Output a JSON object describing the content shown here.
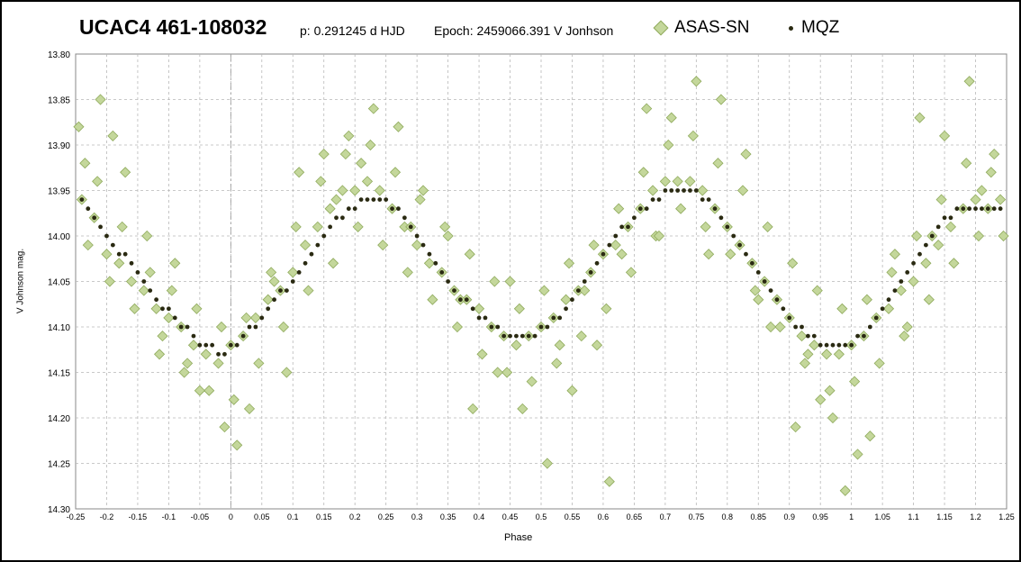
{
  "header": {
    "title": "UCAC4 461-108032",
    "period": "p: 0.291245  d  HJD",
    "epoch": "Epoch: 2459066.391  V Jonhson"
  },
  "chart_data": {
    "type": "scatter",
    "xlabel": "Phase",
    "ylabel": "V Johnson mag.",
    "xlim": [
      -0.25,
      1.25
    ],
    "ylim": [
      14.3,
      13.8
    ],
    "y_inverted": true,
    "grid": true,
    "legend_position": "top",
    "x_ticks": [
      "-0.25",
      "-0.2",
      "-0.15",
      "-0.1",
      "-0.05",
      "0",
      "0.05",
      "0.1",
      "0.15",
      "0.2",
      "0.25",
      "0.3",
      "0.35",
      "0.4",
      "0.45",
      "0.5",
      "0.55",
      "0.6",
      "0.65",
      "0.7",
      "0.75",
      "0.8",
      "0.85",
      "0.9",
      "0.95",
      "1",
      "1.05",
      "1.1",
      "1.15",
      "1.2",
      "1.25"
    ],
    "y_ticks": [
      "13.80",
      "13.85",
      "13.90",
      "13.95",
      "14.00",
      "14.05",
      "14.10",
      "14.15",
      "14.20",
      "14.25",
      "14.30"
    ],
    "series": [
      {
        "name": "ASAS-SN",
        "color": "#c4d79b",
        "edge_color": "#8faa5c",
        "marker": "diamond",
        "x": [
          -0.24,
          -0.22,
          -0.2,
          -0.18,
          -0.16,
          -0.14,
          -0.12,
          -0.1,
          -0.08,
          -0.06,
          -0.04,
          -0.02,
          0.0,
          0.02,
          0.04,
          0.06,
          0.08,
          0.1,
          0.12,
          0.14,
          0.16,
          0.18,
          0.2,
          0.22,
          0.24,
          0.26,
          0.28,
          0.3,
          0.32,
          0.34,
          0.36,
          0.38,
          0.4,
          0.42,
          0.44,
          0.46,
          0.48,
          0.5,
          0.52,
          0.54,
          0.56,
          0.58,
          0.6,
          0.62,
          0.64,
          0.66,
          0.68,
          0.7,
          0.72,
          0.74,
          0.76,
          0.78,
          0.8,
          0.82,
          0.84,
          0.86,
          0.88,
          0.9,
          0.92,
          0.94,
          0.96,
          0.98,
          1.0,
          1.02,
          1.04,
          1.06,
          1.08,
          1.1,
          1.12,
          1.14,
          1.16,
          1.18,
          1.2,
          1.22,
          1.24,
          -0.235,
          -0.215,
          -0.195,
          -0.175,
          -0.155,
          -0.135,
          -0.115,
          -0.095,
          -0.075,
          -0.055,
          -0.035,
          -0.015,
          0.005,
          0.025,
          0.045,
          0.065,
          0.085,
          0.105,
          0.125,
          0.145,
          0.165,
          0.185,
          0.205,
          0.225,
          0.245,
          0.265,
          0.285,
          0.305,
          0.325,
          0.345,
          0.365,
          0.385,
          0.405,
          0.425,
          0.445,
          0.465,
          0.485,
          0.505,
          0.525,
          0.545,
          0.565,
          0.585,
          0.605,
          0.625,
          0.645,
          0.665,
          0.685,
          0.705,
          0.725,
          0.745,
          0.765,
          0.785,
          0.805,
          0.825,
          0.845,
          0.865,
          0.885,
          0.905,
          0.925,
          0.945,
          0.965,
          0.985,
          1.005,
          1.025,
          1.045,
          1.065,
          1.085,
          1.105,
          1.125,
          1.145,
          1.165,
          1.185,
          1.205,
          1.225,
          1.245,
          -0.245,
          -0.21,
          -0.17,
          -0.13,
          -0.09,
          -0.05,
          -0.01,
          0.03,
          0.07,
          0.11,
          0.15,
          0.19,
          0.23,
          0.27,
          0.31,
          0.35,
          0.39,
          0.43,
          0.47,
          0.51,
          0.55,
          0.59,
          0.63,
          0.67,
          0.71,
          0.75,
          0.79,
          0.83,
          0.87,
          0.91,
          0.95,
          0.99,
          1.03,
          1.07,
          1.11,
          1.15,
          1.19,
          1.23,
          -0.23,
          -0.19,
          -0.11,
          -0.07,
          0.01,
          0.09,
          0.17,
          0.21,
          0.29,
          0.37,
          0.45,
          0.53,
          0.57,
          0.61,
          0.69,
          0.77,
          0.85,
          0.93,
          0.97,
          1.01,
          1.09,
          1.13,
          1.21
        ],
        "y": [
          13.96,
          13.98,
          14.02,
          14.03,
          14.05,
          14.06,
          14.08,
          14.09,
          14.1,
          14.12,
          14.13,
          14.14,
          14.12,
          14.11,
          14.09,
          14.07,
          14.06,
          14.04,
          14.01,
          13.99,
          13.97,
          13.95,
          13.95,
          13.94,
          13.95,
          13.97,
          13.99,
          14.01,
          14.03,
          14.04,
          14.06,
          14.07,
          14.08,
          14.1,
          14.11,
          14.12,
          14.11,
          14.1,
          14.09,
          14.07,
          14.06,
          14.04,
          14.02,
          14.01,
          13.99,
          13.97,
          13.95,
          13.94,
          13.94,
          13.94,
          13.95,
          13.97,
          13.99,
          14.01,
          14.03,
          14.05,
          14.07,
          14.09,
          14.11,
          14.12,
          14.13,
          14.13,
          14.12,
          14.11,
          14.09,
          14.08,
          14.06,
          14.05,
          14.03,
          14.01,
          13.99,
          13.97,
          13.96,
          13.97,
          13.96,
          13.92,
          13.94,
          14.05,
          13.99,
          14.08,
          14.0,
          14.13,
          14.06,
          14.15,
          14.08,
          14.17,
          14.1,
          14.18,
          14.09,
          14.14,
          14.04,
          14.1,
          13.99,
          14.06,
          13.94,
          14.03,
          13.91,
          13.99,
          13.9,
          14.01,
          13.93,
          14.04,
          13.96,
          14.07,
          13.99,
          14.1,
          14.02,
          14.13,
          14.05,
          14.15,
          14.08,
          14.16,
          14.06,
          14.14,
          14.03,
          14.11,
          14.01,
          14.08,
          13.97,
          14.04,
          13.93,
          14.0,
          13.9,
          13.97,
          13.89,
          13.99,
          13.92,
          14.02,
          13.95,
          14.06,
          13.99,
          14.1,
          14.03,
          14.14,
          14.06,
          14.17,
          14.08,
          14.16,
          14.07,
          14.14,
          14.04,
          14.11,
          14.0,
          14.07,
          13.96,
          14.03,
          13.92,
          14.0,
          13.93,
          14.0,
          13.88,
          13.85,
          13.93,
          14.04,
          14.03,
          14.17,
          14.21,
          14.19,
          14.05,
          13.93,
          13.91,
          13.89,
          13.86,
          13.88,
          13.95,
          14.0,
          14.19,
          14.15,
          14.19,
          14.25,
          14.17,
          14.12,
          14.02,
          13.86,
          13.87,
          13.83,
          13.85,
          13.91,
          14.1,
          14.21,
          14.18,
          14.28,
          14.22,
          14.02,
          13.87,
          13.89,
          13.83,
          13.91,
          14.01,
          13.89,
          14.11,
          14.14,
          14.23,
          14.15,
          13.96,
          13.92,
          13.99,
          14.07,
          14.05,
          14.12,
          14.06,
          14.27,
          14.0,
          14.02,
          14.07,
          14.13,
          14.2,
          14.24,
          14.1,
          14.0,
          13.95
        ]
      },
      {
        "name": "MQZ",
        "color": "#2a2a12",
        "marker": "dot",
        "x": [
          -0.24,
          -0.23,
          -0.22,
          -0.21,
          -0.2,
          -0.19,
          -0.18,
          -0.17,
          -0.16,
          -0.15,
          -0.14,
          -0.13,
          -0.12,
          -0.11,
          -0.1,
          -0.09,
          -0.08,
          -0.07,
          -0.06,
          -0.05,
          -0.04,
          -0.03,
          -0.02,
          -0.01,
          0.0,
          0.01,
          0.02,
          0.03,
          0.04,
          0.05,
          0.06,
          0.07,
          0.08,
          0.09,
          0.1,
          0.11,
          0.12,
          0.13,
          0.14,
          0.15,
          0.16,
          0.17,
          0.18,
          0.19,
          0.2,
          0.21,
          0.22,
          0.23,
          0.24,
          0.25,
          0.26,
          0.27,
          0.28,
          0.29,
          0.3,
          0.31,
          0.32,
          0.33,
          0.34,
          0.35,
          0.36,
          0.37,
          0.38,
          0.39,
          0.4,
          0.41,
          0.42,
          0.43,
          0.44,
          0.45,
          0.46,
          0.47,
          0.48,
          0.49,
          0.5,
          0.51,
          0.52,
          0.53,
          0.54,
          0.55,
          0.56,
          0.57,
          0.58,
          0.59,
          0.6,
          0.61,
          0.62,
          0.63,
          0.64,
          0.65,
          0.66,
          0.67,
          0.68,
          0.69,
          0.7,
          0.71,
          0.72,
          0.73,
          0.74,
          0.75,
          0.76,
          0.77,
          0.78,
          0.79,
          0.8,
          0.81,
          0.82,
          0.83,
          0.84,
          0.85,
          0.86,
          0.87,
          0.88,
          0.89,
          0.9,
          0.91,
          0.92,
          0.93,
          0.94,
          0.95,
          0.96,
          0.97,
          0.98,
          0.99,
          1.0,
          1.01,
          1.02,
          1.03,
          1.04,
          1.05,
          1.06,
          1.07,
          1.08,
          1.09,
          1.1,
          1.11,
          1.12,
          1.13,
          1.14,
          1.15,
          1.16,
          1.17,
          1.18,
          1.19,
          1.2,
          1.21,
          1.22,
          1.23,
          1.24
        ],
        "y": [
          13.96,
          13.97,
          13.98,
          13.99,
          14.0,
          14.01,
          14.02,
          14.02,
          14.03,
          14.04,
          14.05,
          14.06,
          14.07,
          14.08,
          14.08,
          14.09,
          14.1,
          14.1,
          14.11,
          14.12,
          14.12,
          14.12,
          14.13,
          14.13,
          14.12,
          14.12,
          14.11,
          14.1,
          14.1,
          14.09,
          14.08,
          14.07,
          14.06,
          14.06,
          14.05,
          14.04,
          14.03,
          14.02,
          14.01,
          14.0,
          13.99,
          13.98,
          13.98,
          13.97,
          13.97,
          13.96,
          13.96,
          13.96,
          13.96,
          13.96,
          13.97,
          13.97,
          13.98,
          13.99,
          14.0,
          14.01,
          14.02,
          14.03,
          14.04,
          14.05,
          14.06,
          14.07,
          14.07,
          14.08,
          14.09,
          14.09,
          14.1,
          14.1,
          14.11,
          14.11,
          14.11,
          14.11,
          14.11,
          14.11,
          14.1,
          14.1,
          14.09,
          14.09,
          14.08,
          14.07,
          14.06,
          14.05,
          14.04,
          14.03,
          14.02,
          14.01,
          14.0,
          13.99,
          13.99,
          13.98,
          13.97,
          13.97,
          13.96,
          13.96,
          13.95,
          13.95,
          13.95,
          13.95,
          13.95,
          13.95,
          13.96,
          13.96,
          13.97,
          13.98,
          13.99,
          14.0,
          14.01,
          14.02,
          14.03,
          14.04,
          14.05,
          14.06,
          14.07,
          14.08,
          14.09,
          14.1,
          14.1,
          14.11,
          14.11,
          14.12,
          14.12,
          14.12,
          14.12,
          14.12,
          14.12,
          14.11,
          14.11,
          14.1,
          14.09,
          14.08,
          14.07,
          14.06,
          14.05,
          14.04,
          14.03,
          14.02,
          14.01,
          14.0,
          13.99,
          13.98,
          13.98,
          13.97,
          13.97,
          13.97,
          13.97,
          13.97,
          13.97,
          13.97,
          13.97
        ]
      }
    ]
  }
}
